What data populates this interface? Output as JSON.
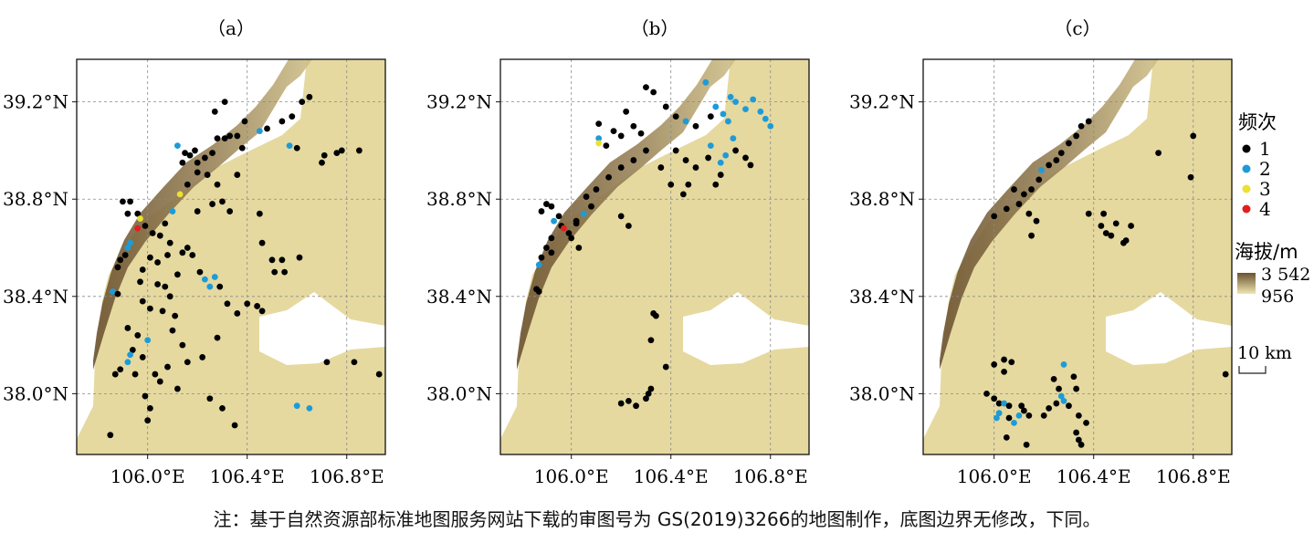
{
  "panels": [
    {
      "label": "（a）",
      "points": [
        [
          105.9,
          38.79,
          1
        ],
        [
          105.93,
          38.79,
          1
        ],
        [
          105.92,
          38.74,
          1
        ],
        [
          105.96,
          38.74,
          1
        ],
        [
          105.97,
          38.72,
          3
        ],
        [
          105.96,
          38.68,
          4
        ],
        [
          105.93,
          38.62,
          2
        ],
        [
          105.92,
          38.6,
          2
        ],
        [
          105.91,
          38.57,
          1
        ],
        [
          105.89,
          38.55,
          1
        ],
        [
          105.88,
          38.52,
          1
        ],
        [
          105.86,
          38.42,
          2
        ],
        [
          105.88,
          38.41,
          1
        ],
        [
          105.99,
          38.69,
          1
        ],
        [
          106.02,
          38.66,
          1
        ],
        [
          106.05,
          38.65,
          1
        ],
        [
          106.1,
          38.75,
          2
        ],
        [
          106.12,
          39.02,
          2
        ],
        [
          106.15,
          38.99,
          1
        ],
        [
          106.17,
          38.98,
          1
        ],
        [
          106.2,
          38.95,
          1
        ],
        [
          106.23,
          38.97,
          1
        ],
        [
          106.26,
          38.99,
          1
        ],
        [
          106.28,
          39.05,
          1
        ],
        [
          106.31,
          39.05,
          1
        ],
        [
          106.33,
          39.06,
          1
        ],
        [
          106.36,
          39.06,
          1
        ],
        [
          106.31,
          39.2,
          1
        ],
        [
          106.27,
          39.16,
          1
        ],
        [
          106.39,
          39.12,
          1
        ],
        [
          106.45,
          39.08,
          2
        ],
        [
          106.48,
          39.09,
          1
        ],
        [
          106.54,
          39.12,
          1
        ],
        [
          106.57,
          39.02,
          2
        ],
        [
          106.6,
          39.01,
          1
        ],
        [
          106.58,
          39.14,
          1
        ],
        [
          106.62,
          39.2,
          1
        ],
        [
          106.65,
          39.22,
          1
        ],
        [
          106.7,
          38.95,
          1
        ],
        [
          106.71,
          38.98,
          1
        ],
        [
          106.76,
          38.99,
          1
        ],
        [
          106.78,
          39.0,
          1
        ],
        [
          106.85,
          39.0,
          1
        ],
        [
          106.13,
          38.82,
          3
        ],
        [
          106.16,
          38.86,
          1
        ],
        [
          106.2,
          38.91,
          1
        ],
        [
          106.24,
          38.9,
          1
        ],
        [
          106.28,
          38.86,
          1
        ],
        [
          106.3,
          38.79,
          1
        ],
        [
          106.33,
          38.75,
          1
        ],
        [
          106.26,
          38.78,
          1
        ],
        [
          106.36,
          38.9,
          1
        ],
        [
          106.45,
          38.74,
          1
        ],
        [
          106.46,
          38.62,
          1
        ],
        [
          106.04,
          38.54,
          1
        ],
        [
          106.08,
          38.57,
          1
        ],
        [
          106.12,
          38.49,
          1
        ],
        [
          106.16,
          38.6,
          1
        ],
        [
          106.21,
          38.5,
          1
        ],
        [
          106.23,
          38.47,
          2
        ],
        [
          106.25,
          38.44,
          2
        ],
        [
          106.27,
          38.48,
          2
        ],
        [
          106.29,
          38.44,
          1
        ],
        [
          106.32,
          38.37,
          1
        ],
        [
          105.98,
          38.38,
          1
        ],
        [
          106.01,
          38.35,
          1
        ],
        [
          106.06,
          38.34,
          1
        ],
        [
          106.11,
          38.32,
          1
        ],
        [
          105.92,
          38.27,
          1
        ],
        [
          105.96,
          38.24,
          1
        ],
        [
          106.0,
          38.22,
          2
        ],
        [
          105.94,
          38.18,
          1
        ],
        [
          105.93,
          38.16,
          2
        ],
        [
          105.92,
          38.13,
          2
        ],
        [
          105.89,
          38.1,
          1
        ],
        [
          105.87,
          38.08,
          1
        ],
        [
          106.03,
          38.08,
          1
        ],
        [
          106.05,
          38.05,
          1
        ],
        [
          106.12,
          38.02,
          1
        ],
        [
          105.99,
          37.99,
          1
        ],
        [
          106.01,
          37.94,
          1
        ],
        [
          106.0,
          37.89,
          1
        ],
        [
          106.25,
          37.98,
          1
        ],
        [
          106.3,
          37.94,
          1
        ],
        [
          106.35,
          37.87,
          1
        ],
        [
          105.85,
          37.83,
          1
        ],
        [
          106.6,
          37.95,
          2
        ],
        [
          106.65,
          37.94,
          2
        ],
        [
          106.72,
          38.13,
          1
        ],
        [
          106.83,
          38.13,
          1
        ],
        [
          106.93,
          38.08,
          1
        ],
        [
          106.51,
          38.5,
          1
        ],
        [
          106.55,
          38.5,
          1
        ],
        [
          106.61,
          38.56,
          1
        ],
        [
          106.5,
          38.55,
          1
        ],
        [
          106.54,
          38.55,
          1
        ],
        [
          106.22,
          38.15,
          1
        ],
        [
          106.28,
          38.23,
          1
        ],
        [
          106.36,
          38.33,
          1
        ],
        [
          106.4,
          38.37,
          1
        ],
        [
          106.44,
          38.36,
          1
        ],
        [
          106.46,
          38.34,
          1
        ],
        [
          106.07,
          38.7,
          1
        ],
        [
          106.09,
          38.62,
          1
        ],
        [
          106.14,
          38.58,
          1
        ],
        [
          106.18,
          38.57,
          1
        ],
        [
          106.04,
          38.45,
          1
        ],
        [
          106.07,
          38.44,
          1
        ],
        [
          106.09,
          38.4,
          1
        ],
        [
          105.97,
          38.46,
          1
        ],
        [
          105.98,
          38.51,
          1
        ],
        [
          106.01,
          38.56,
          1
        ],
        [
          106.1,
          38.26,
          1
        ],
        [
          106.14,
          38.2,
          1
        ],
        [
          106.16,
          38.13,
          1
        ],
        [
          106.08,
          38.11,
          1
        ],
        [
          105.98,
          38.15,
          1
        ],
        [
          105.95,
          38.08,
          1
        ],
        [
          106.2,
          38.75,
          1
        ],
        [
          106.14,
          38.95,
          1
        ],
        [
          106.19,
          39.0,
          1
        ],
        [
          106.38,
          39.01,
          1
        ]
      ]
    },
    {
      "label": "（b）",
      "points": [
        [
          105.9,
          38.78,
          1
        ],
        [
          105.92,
          38.77,
          1
        ],
        [
          105.88,
          38.75,
          1
        ],
        [
          105.95,
          38.73,
          1
        ],
        [
          105.93,
          38.71,
          2
        ],
        [
          105.96,
          38.69,
          1
        ],
        [
          105.97,
          38.68,
          4
        ],
        [
          105.99,
          38.66,
          1
        ],
        [
          105.92,
          38.64,
          1
        ],
        [
          105.9,
          38.6,
          1
        ],
        [
          105.92,
          38.58,
          1
        ],
        [
          105.88,
          38.56,
          1
        ],
        [
          105.87,
          38.53,
          2
        ],
        [
          105.86,
          38.43,
          1
        ],
        [
          105.87,
          38.42,
          1
        ],
        [
          106.02,
          38.71,
          1
        ],
        [
          106.05,
          38.74,
          2
        ],
        [
          106.08,
          38.77,
          1
        ],
        [
          106.11,
          39.05,
          2
        ],
        [
          106.11,
          39.03,
          3
        ],
        [
          106.14,
          39.02,
          1
        ],
        [
          106.11,
          39.11,
          1
        ],
        [
          106.17,
          39.08,
          1
        ],
        [
          106.2,
          39.06,
          1
        ],
        [
          106.22,
          39.16,
          1
        ],
        [
          106.25,
          39.1,
          1
        ],
        [
          106.28,
          39.07,
          1
        ],
        [
          106.3,
          39.26,
          1
        ],
        [
          106.33,
          39.24,
          1
        ],
        [
          106.38,
          39.18,
          1
        ],
        [
          106.42,
          39.14,
          1
        ],
        [
          106.46,
          39.12,
          2
        ],
        [
          106.5,
          39.1,
          1
        ],
        [
          106.54,
          39.28,
          2
        ],
        [
          106.56,
          39.14,
          1
        ],
        [
          106.58,
          39.18,
          2
        ],
        [
          106.61,
          39.15,
          2
        ],
        [
          106.64,
          39.22,
          2
        ],
        [
          106.66,
          39.2,
          2
        ],
        [
          106.7,
          39.17,
          2
        ],
        [
          106.73,
          39.21,
          2
        ],
        [
          106.76,
          39.16,
          2
        ],
        [
          106.78,
          39.13,
          2
        ],
        [
          106.8,
          39.1,
          2
        ],
        [
          106.63,
          39.12,
          2
        ],
        [
          106.65,
          39.05,
          2
        ],
        [
          106.62,
          38.98,
          2
        ],
        [
          106.6,
          38.95,
          2
        ],
        [
          106.56,
          39.02,
          2
        ],
        [
          106.66,
          39.0,
          1
        ],
        [
          106.7,
          38.97,
          1
        ],
        [
          106.72,
          38.94,
          1
        ],
        [
          106.55,
          38.97,
          1
        ],
        [
          106.5,
          38.93,
          1
        ],
        [
          106.46,
          38.96,
          1
        ],
        [
          106.42,
          39.0,
          1
        ],
        [
          106.6,
          38.9,
          1
        ],
        [
          106.58,
          38.86,
          1
        ],
        [
          106.47,
          38.86,
          1
        ],
        [
          106.45,
          38.82,
          1
        ],
        [
          106.4,
          38.86,
          1
        ],
        [
          106.36,
          38.93,
          1
        ],
        [
          106.3,
          39.0,
          1
        ],
        [
          106.25,
          38.96,
          1
        ],
        [
          106.2,
          38.93,
          1
        ],
        [
          106.15,
          38.89,
          1
        ],
        [
          106.1,
          38.84,
          1
        ],
        [
          106.06,
          38.81,
          1
        ],
        [
          106.02,
          38.7,
          1
        ],
        [
          106.03,
          38.6,
          1
        ],
        [
          106.0,
          38.64,
          1
        ],
        [
          106.2,
          38.73,
          1
        ],
        [
          106.23,
          38.69,
          1
        ],
        [
          106.33,
          38.33,
          1
        ],
        [
          106.34,
          38.32,
          1
        ],
        [
          106.32,
          38.22,
          1
        ],
        [
          106.38,
          38.11,
          1
        ],
        [
          106.2,
          37.96,
          1
        ],
        [
          106.23,
          37.97,
          1
        ],
        [
          106.26,
          37.95,
          1
        ],
        [
          106.3,
          37.98,
          1
        ],
        [
          106.31,
          38.0,
          1
        ],
        [
          106.32,
          38.02,
          1
        ]
      ]
    },
    {
      "label": "（c）",
      "points": [
        [
          106.1,
          38.78,
          1
        ],
        [
          106.12,
          38.82,
          1
        ],
        [
          106.15,
          38.84,
          1
        ],
        [
          106.18,
          38.88,
          1
        ],
        [
          106.19,
          38.92,
          2
        ],
        [
          106.22,
          38.94,
          1
        ],
        [
          106.25,
          38.96,
          1
        ],
        [
          106.27,
          38.99,
          1
        ],
        [
          106.3,
          39.03,
          1
        ],
        [
          106.33,
          39.06,
          1
        ],
        [
          106.35,
          39.1,
          1
        ],
        [
          106.38,
          39.12,
          1
        ],
        [
          106.05,
          38.76,
          1
        ],
        [
          106.0,
          38.73,
          1
        ],
        [
          106.08,
          38.84,
          1
        ],
        [
          106.14,
          38.74,
          1
        ],
        [
          106.17,
          38.71,
          1
        ],
        [
          106.15,
          38.65,
          1
        ],
        [
          106.38,
          38.74,
          1
        ],
        [
          106.43,
          38.69,
          1
        ],
        [
          106.45,
          38.66,
          1
        ],
        [
          106.47,
          38.65,
          1
        ],
        [
          106.44,
          38.74,
          1
        ],
        [
          106.49,
          38.7,
          1
        ],
        [
          106.52,
          38.62,
          1
        ],
        [
          106.53,
          38.63,
          1
        ],
        [
          106.55,
          38.69,
          1
        ],
        [
          106.66,
          38.99,
          1
        ],
        [
          106.8,
          39.06,
          1
        ],
        [
          106.79,
          38.89,
          1
        ],
        [
          106.0,
          38.12,
          1
        ],
        [
          106.04,
          38.14,
          1
        ],
        [
          106.07,
          38.13,
          1
        ],
        [
          106.04,
          38.09,
          1
        ],
        [
          105.97,
          38.0,
          1
        ],
        [
          106.0,
          37.98,
          1
        ],
        [
          106.02,
          37.96,
          1
        ],
        [
          106.04,
          37.96,
          2
        ],
        [
          106.06,
          37.95,
          1
        ],
        [
          106.02,
          37.92,
          2
        ],
        [
          106.01,
          37.9,
          2
        ],
        [
          106.06,
          37.9,
          1
        ],
        [
          106.08,
          37.88,
          2
        ],
        [
          106.1,
          37.91,
          2
        ],
        [
          106.12,
          37.93,
          1
        ],
        [
          106.14,
          37.91,
          1
        ],
        [
          106.11,
          37.95,
          1
        ],
        [
          106.05,
          37.82,
          1
        ],
        [
          106.13,
          37.79,
          1
        ],
        [
          106.24,
          38.06,
          1
        ],
        [
          106.26,
          38.02,
          1
        ],
        [
          106.27,
          37.99,
          2
        ],
        [
          106.28,
          37.97,
          2
        ],
        [
          106.3,
          37.95,
          1
        ],
        [
          106.25,
          37.96,
          1
        ],
        [
          106.22,
          37.94,
          1
        ],
        [
          106.28,
          38.12,
          2
        ],
        [
          106.32,
          38.07,
          1
        ],
        [
          106.33,
          38.02,
          1
        ],
        [
          106.34,
          37.91,
          1
        ],
        [
          106.37,
          37.88,
          1
        ],
        [
          106.33,
          37.84,
          1
        ],
        [
          106.34,
          37.81,
          1
        ],
        [
          106.35,
          37.79,
          1
        ],
        [
          106.2,
          37.91,
          1
        ],
        [
          106.93,
          38.08,
          1
        ]
      ]
    }
  ],
  "axes": {
    "x_ticks": [
      "106.0°E",
      "106.4°E",
      "106.8°E"
    ],
    "y_ticks": [
      "39.2°N",
      "38.8°N",
      "38.4°N",
      "38.0°N"
    ]
  },
  "legend": {
    "freq_title": "频次",
    "freq_items": [
      {
        "label": "1",
        "color": "#000000"
      },
      {
        "label": "2",
        "color": "#1e9bd7"
      },
      {
        "label": "3",
        "color": "#ece032"
      },
      {
        "label": "4",
        "color": "#e02020"
      }
    ],
    "elev_title": "海拔/m",
    "elev_max": "3 542",
    "elev_min": "956",
    "elev_colors": [
      "#6b5230",
      "#efe6b0"
    ]
  },
  "scalebar": {
    "label": "10 km"
  },
  "caption": "注：基于自然资源部标准地图服务网站下载的审图号为 GS(2019)3266的地图制作，底图边界无修改，下同。"
}
